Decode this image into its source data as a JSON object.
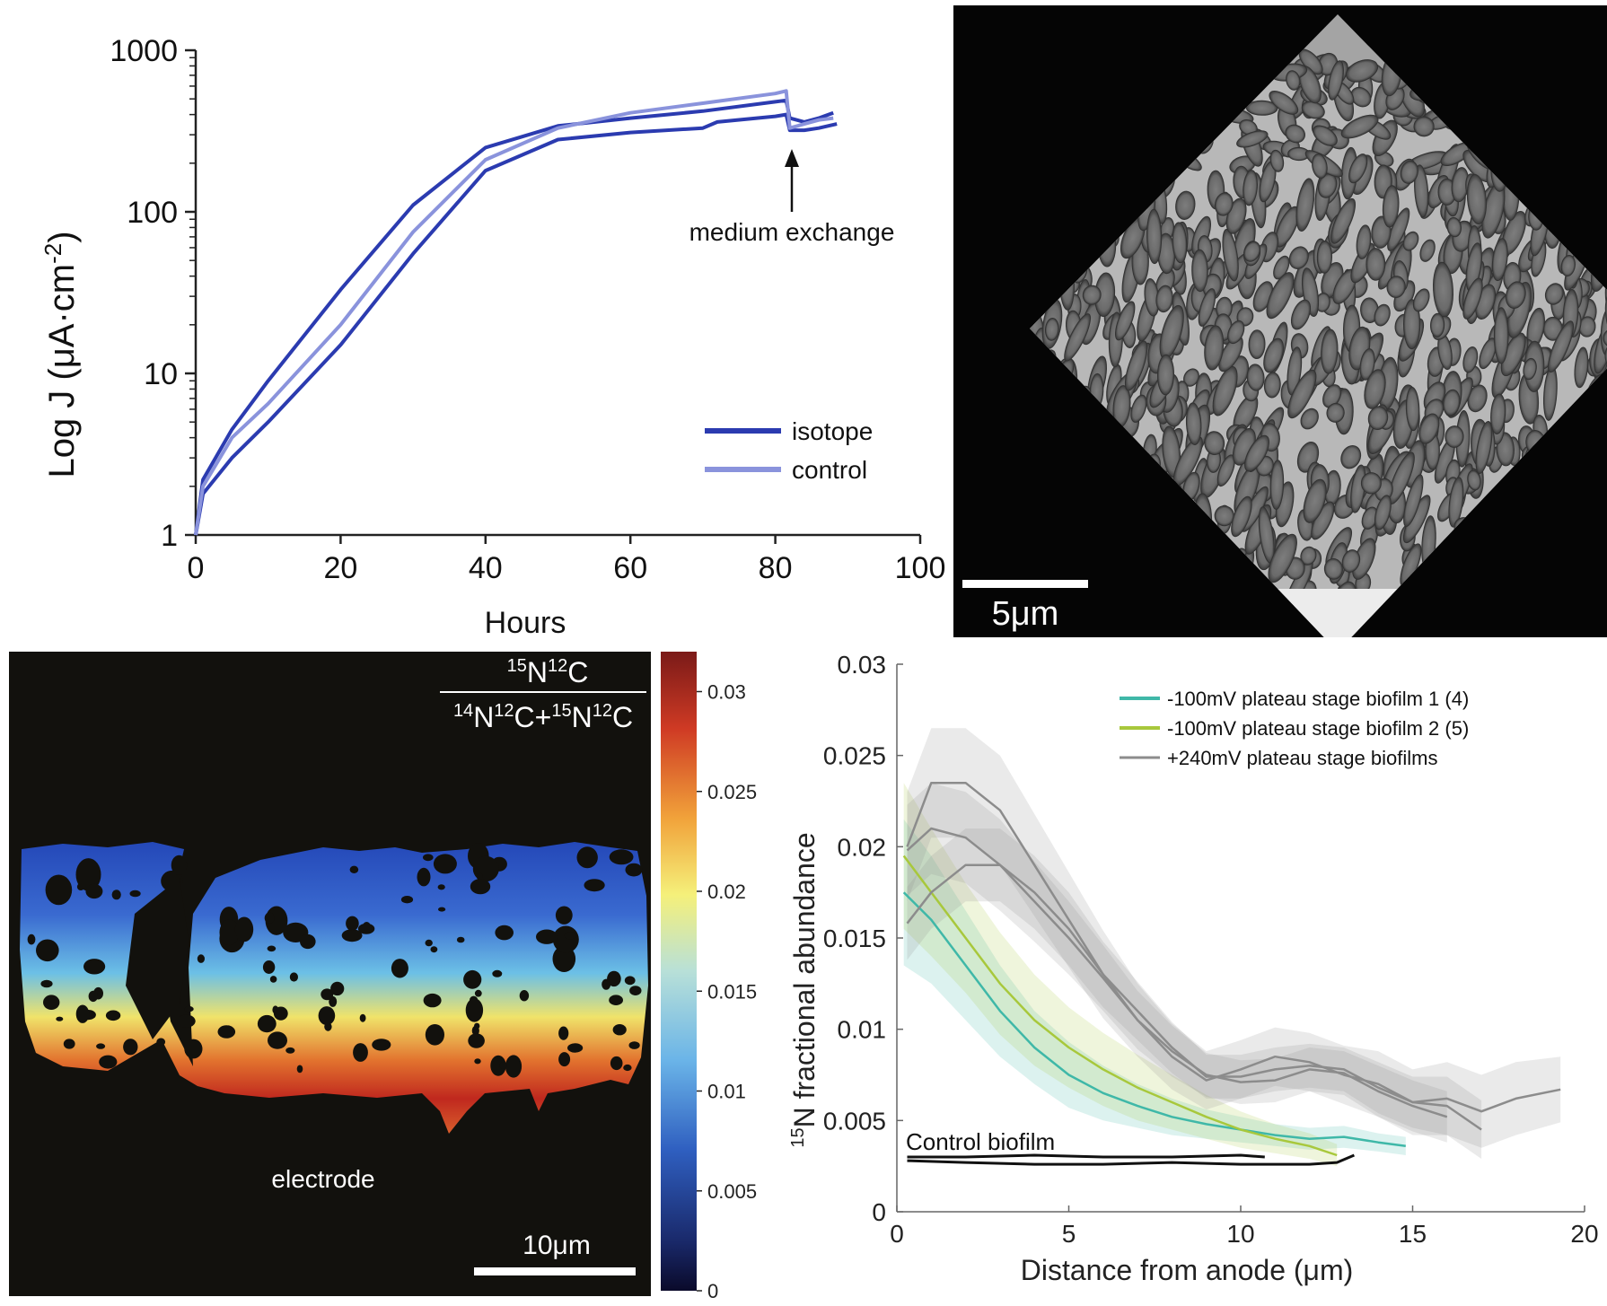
{
  "chart_data": [
    {
      "type": "line",
      "xlabel": "Hours",
      "ylabel": "Log J (μA·cm",
      "ylabel_sup": "-2",
      "ylabel_close": ")",
      "x_ticks": [
        "0",
        "20",
        "40",
        "60",
        "80",
        "100"
      ],
      "y_ticks": [
        "1",
        "10",
        "100",
        "1000"
      ],
      "xlim": [
        0,
        100
      ],
      "ylim": [
        1,
        1000
      ],
      "y_scale": "log",
      "annotation": "medium exchange",
      "annotation_x": 81.5,
      "legend": {
        "placement": "bottom-right",
        "items": [
          "isotope",
          "control"
        ]
      },
      "colors": {
        "isotope": "#2b3bb0",
        "control": "#8a93dc"
      },
      "series": [
        {
          "name": "isotope",
          "x": [
            0,
            1,
            5,
            10,
            20,
            30,
            40,
            50,
            60,
            70,
            80,
            81.5,
            82,
            84,
            86,
            88
          ],
          "y": [
            1,
            2.2,
            4.5,
            9,
            33,
            110,
            250,
            340,
            380,
            420,
            480,
            490,
            380,
            360,
            380,
            410
          ]
        },
        {
          "name": "isotope",
          "x": [
            0,
            1,
            5,
            10,
            20,
            30,
            40,
            50,
            60,
            70,
            72,
            80,
            81.5,
            82,
            84,
            86,
            88.5
          ],
          "y": [
            1,
            1.8,
            3,
            5,
            15,
            55,
            180,
            280,
            310,
            330,
            360,
            390,
            400,
            320,
            320,
            330,
            350
          ]
        },
        {
          "name": "control",
          "x": [
            0,
            1,
            5,
            10,
            20,
            30,
            40,
            50,
            60,
            70,
            80,
            81.5,
            82,
            84,
            86,
            88
          ],
          "y": [
            1,
            2,
            4,
            6.5,
            20,
            75,
            210,
            330,
            410,
            470,
            540,
            560,
            330,
            350,
            370,
            380
          ]
        }
      ]
    },
    {
      "type": "other",
      "scale_bar_label": "5μm"
    },
    {
      "type": "heatmap",
      "formula_num": "15N12C",
      "formula_den": "14N12C+15N12C",
      "colorbar_ticks": [
        "0.03",
        "0.025",
        "0.02",
        "0.015",
        "0.01",
        "0.005",
        "0"
      ],
      "colorbar_range": [
        0,
        0.032
      ],
      "label": "electrode",
      "scale_bar_label": "10μm"
    },
    {
      "type": "line",
      "xlabel": "Distance from anode (μm)",
      "ylabel": "15N fractional abundance",
      "x_ticks": [
        "0",
        "5",
        "10",
        "15",
        "20"
      ],
      "y_ticks": [
        "0",
        "0.005",
        "0.01",
        "0.015",
        "0.02",
        "0.025",
        "0.03"
      ],
      "xlim": [
        0,
        20
      ],
      "ylim": [
        0,
        0.03
      ],
      "annotation": "Control biofilm",
      "legend": {
        "placement": "top-right",
        "items": [
          "-100mV plateau stage biofilm 1 (4)",
          "-100mV plateau stage biofilm 2 (5)",
          "+240mV plateau stage biofilms"
        ]
      },
      "colors": {
        "bio1": "#3fb8a8",
        "bio2": "#a8c83c",
        "plus240": "#8c8c8c",
        "control": "#111111"
      },
      "series": [
        {
          "name": "-100mV plateau stage biofilm 1 (4)",
          "x": [
            0.2,
            1,
            2,
            3,
            4,
            5,
            6,
            7,
            8,
            9,
            10,
            11,
            12,
            13,
            14,
            14.8
          ],
          "y": [
            0.0175,
            0.016,
            0.0135,
            0.011,
            0.009,
            0.0075,
            0.0065,
            0.0058,
            0.0052,
            0.0048,
            0.0045,
            0.0042,
            0.004,
            0.0041,
            0.0038,
            0.0036
          ],
          "band": [
            0.004,
            0.0035,
            0.003,
            0.0025,
            0.002,
            0.0018,
            0.0015,
            0.0012,
            0.001,
            0.0008,
            0.0007,
            0.0006,
            0.0006,
            0.0006,
            0.0005,
            0.0005
          ]
        },
        {
          "name": "-100mV plateau stage biofilm 2 (5)",
          "x": [
            0.2,
            1,
            2,
            3,
            4,
            5,
            6,
            7,
            8,
            9,
            10,
            11,
            12,
            12.8
          ],
          "y": [
            0.0195,
            0.0175,
            0.015,
            0.0125,
            0.0105,
            0.009,
            0.0078,
            0.0068,
            0.006,
            0.0052,
            0.0045,
            0.004,
            0.0036,
            0.0031
          ],
          "band": [
            0.004,
            0.0035,
            0.003,
            0.0028,
            0.0025,
            0.0022,
            0.002,
            0.0018,
            0.0015,
            0.0012,
            0.001,
            0.0008,
            0.0007,
            0.0006
          ]
        },
        {
          "name": "+240mV plateau stage biofilms",
          "x": [
            0.3,
            1,
            2,
            3,
            4,
            5,
            6,
            7,
            8,
            9,
            10,
            11,
            12,
            13,
            14,
            15,
            16,
            17,
            18,
            19.3
          ],
          "y": [
            0.02,
            0.0235,
            0.0235,
            0.022,
            0.019,
            0.016,
            0.013,
            0.0105,
            0.0085,
            0.0072,
            0.0078,
            0.0085,
            0.0082,
            0.0075,
            0.007,
            0.006,
            0.0062,
            0.0055,
            0.0062,
            0.0067
          ],
          "band": [
            0.003,
            0.003,
            0.003,
            0.003,
            0.0028,
            0.0026,
            0.0024,
            0.002,
            0.0018,
            0.0016,
            0.0016,
            0.0016,
            0.0016,
            0.0016,
            0.0018,
            0.0018,
            0.002,
            0.002,
            0.002,
            0.0018
          ]
        },
        {
          "name": "+240mV plateau stage biofilms",
          "x": [
            0.3,
            1,
            2,
            3,
            4,
            5,
            6,
            7,
            8,
            9,
            10,
            11,
            12,
            13,
            14,
            15,
            16,
            17
          ],
          "y": [
            0.0158,
            0.0175,
            0.019,
            0.019,
            0.0175,
            0.0155,
            0.013,
            0.011,
            0.009,
            0.0074,
            0.0074,
            0.0078,
            0.008,
            0.0078,
            0.0068,
            0.006,
            0.0058,
            0.0045
          ],
          "band": [
            0.002,
            0.002,
            0.002,
            0.002,
            0.002,
            0.002,
            0.0018,
            0.0016,
            0.0014,
            0.0012,
            0.0012,
            0.0012,
            0.0012,
            0.0012,
            0.0014,
            0.0014,
            0.0016,
            0.0016
          ]
        },
        {
          "name": "+240mV plateau stage biofilms",
          "x": [
            0.3,
            1,
            2,
            3,
            4,
            5,
            6,
            7,
            8,
            9,
            10,
            11,
            12,
            13,
            14,
            15,
            16
          ],
          "y": [
            0.0198,
            0.021,
            0.0205,
            0.019,
            0.017,
            0.015,
            0.0128,
            0.0105,
            0.0088,
            0.0075,
            0.0071,
            0.0072,
            0.0078,
            0.0076,
            0.0066,
            0.0058,
            0.0052
          ],
          "band": [
            0.0025,
            0.0025,
            0.0025,
            0.0025,
            0.0022,
            0.002,
            0.0018,
            0.0016,
            0.0014,
            0.0012,
            0.0012,
            0.0012,
            0.0012,
            0.0012,
            0.0014,
            0.0014,
            0.0014
          ]
        },
        {
          "name": "Control biofilm",
          "x": [
            0.3,
            2,
            4,
            6,
            8,
            10,
            10.7
          ],
          "y": [
            0.003,
            0.003,
            0.0031,
            0.003,
            0.003,
            0.0031,
            0.003
          ]
        },
        {
          "name": "Control biofilm",
          "x": [
            0.3,
            2,
            4,
            6,
            8,
            10,
            12,
            12.8,
            13.3
          ],
          "y": [
            0.0028,
            0.0027,
            0.0026,
            0.0026,
            0.0027,
            0.0026,
            0.0026,
            0.0027,
            0.0031
          ]
        }
      ]
    }
  ]
}
